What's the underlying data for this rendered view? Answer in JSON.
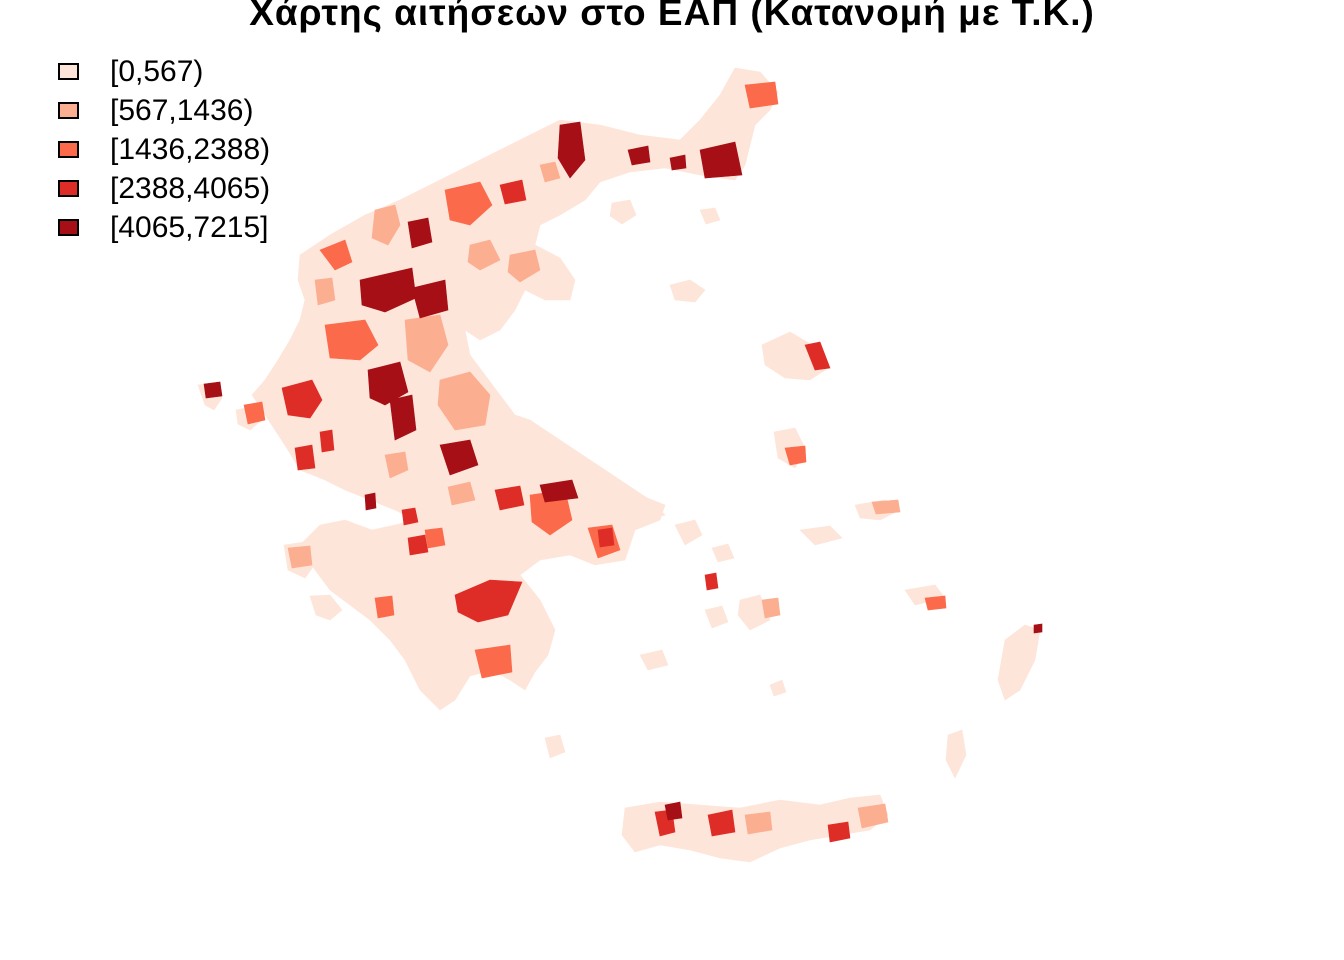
{
  "title": "Χάρτης αιτήσεων στο ΕΑΠ (Κατανομή με Τ.Κ.)",
  "legend": [
    {
      "label": "[0,567)",
      "color": "#fee5d9"
    },
    {
      "label": "[567,1436)",
      "color": "#fcae91"
    },
    {
      "label": "[1436,2388)",
      "color": "#fb6a4a"
    },
    {
      "label": "[2388,4065)",
      "color": "#de2d26"
    },
    {
      "label": "[4065,7215]",
      "color": "#a50f15"
    }
  ]
}
